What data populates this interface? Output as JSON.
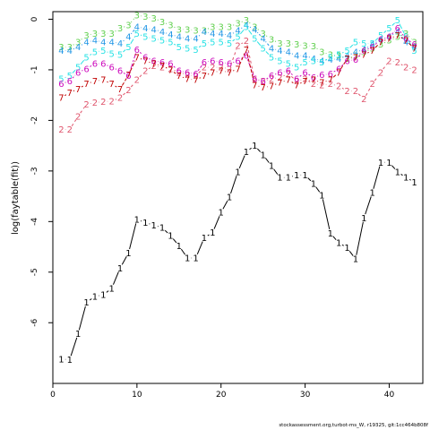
{
  "chart_data": {
    "type": "line",
    "xlabel": "",
    "ylabel": "log(faytable(fit))",
    "xlim": [
      0,
      44
    ],
    "ylim": [
      -7.2,
      0.15
    ],
    "xticks": [
      0,
      10,
      20,
      30,
      40
    ],
    "yticks": [
      0,
      -1,
      -2,
      -3,
      -4,
      -5,
      -6
    ],
    "grid": false,
    "legend": "none",
    "footer": "stockassessment.org,turbot-ms_W, r19325, git:1cc464b808f",
    "x": [
      1,
      2,
      3,
      4,
      5,
      6,
      7,
      8,
      9,
      10,
      11,
      12,
      13,
      14,
      15,
      16,
      17,
      18,
      19,
      20,
      21,
      22,
      23,
      24,
      25,
      26,
      27,
      28,
      29,
      30,
      31,
      32,
      33,
      34,
      35,
      36,
      37,
      38,
      39,
      40,
      41,
      42,
      43
    ],
    "series": [
      {
        "label": "1",
        "color": "#000000",
        "dash": "",
        "values": [
          -6.72,
          -6.73,
          -6.22,
          -5.6,
          -5.48,
          -5.45,
          -5.32,
          -4.92,
          -4.62,
          -3.96,
          -4.02,
          -4.07,
          -4.12,
          -4.28,
          -4.48,
          -4.72,
          -4.72,
          -4.32,
          -4.22,
          -3.82,
          -3.52,
          -3.02,
          -2.62,
          -2.5,
          -2.68,
          -2.9,
          -3.13,
          -3.13,
          -3.08,
          -3.08,
          -3.25,
          -3.48,
          -4.23,
          -4.42,
          -4.52,
          -4.74,
          -3.93,
          -3.43,
          -2.83,
          -2.83,
          -3.02,
          -3.13,
          -3.22
        ]
      },
      {
        "label": "2",
        "color": "#DF536B",
        "dash": "3,3",
        "values": [
          -2.18,
          -2.18,
          -1.92,
          -1.68,
          -1.65,
          -1.63,
          -1.62,
          -1.55,
          -1.4,
          -1.2,
          -1.02,
          -0.92,
          -0.95,
          -0.98,
          -1.05,
          -1.1,
          -1.12,
          -0.95,
          -0.95,
          -0.95,
          -0.98,
          -0.52,
          -0.43,
          -1.2,
          -1.22,
          -1.18,
          -1.15,
          -1.08,
          -1.22,
          -1.18,
          -1.28,
          -1.3,
          -1.28,
          -1.32,
          -1.42,
          -1.42,
          -1.58,
          -1.28,
          -1.05,
          -0.82,
          -0.85,
          -0.95,
          -1.0
        ]
      },
      {
        "label": "3",
        "color": "#61D04F",
        "dash": "1,3",
        "values": [
          -0.55,
          -0.55,
          -0.45,
          -0.32,
          -0.28,
          -0.28,
          -0.28,
          -0.18,
          -0.12,
          0.08,
          0.05,
          0.02,
          -0.05,
          -0.12,
          -0.2,
          -0.2,
          -0.22,
          -0.22,
          -0.15,
          -0.15,
          -0.15,
          -0.08,
          -0.02,
          -0.15,
          -0.28,
          -0.4,
          -0.48,
          -0.48,
          -0.5,
          -0.52,
          -0.53,
          -0.65,
          -0.7,
          -0.72,
          -0.78,
          -0.72,
          -0.65,
          -0.58,
          -0.5,
          -0.42,
          -0.35,
          -0.28,
          -0.45
        ]
      },
      {
        "label": "4",
        "color": "#2297E6",
        "dash": "1,2,3,2",
        "values": [
          -0.62,
          -0.62,
          -0.55,
          -0.45,
          -0.42,
          -0.45,
          -0.45,
          -0.48,
          -0.35,
          -0.15,
          -0.18,
          -0.2,
          -0.25,
          -0.3,
          -0.35,
          -0.38,
          -0.38,
          -0.25,
          -0.28,
          -0.28,
          -0.32,
          -0.22,
          -0.12,
          -0.2,
          -0.38,
          -0.58,
          -0.62,
          -0.65,
          -0.72,
          -0.72,
          -0.78,
          -0.82,
          -0.8,
          -0.78,
          -0.72,
          -0.65,
          -0.6,
          -0.5,
          -0.4,
          -0.35,
          -0.25,
          -0.45,
          -0.55
        ]
      },
      {
        "label": "5",
        "color": "#28E2E5",
        "dash": "6,2",
        "values": [
          -1.18,
          -1.12,
          -0.95,
          -0.75,
          -0.65,
          -0.62,
          -0.68,
          -0.7,
          -0.55,
          -0.28,
          -0.35,
          -0.38,
          -0.42,
          -0.45,
          -0.55,
          -0.58,
          -0.6,
          -0.48,
          -0.45,
          -0.45,
          -0.48,
          -0.35,
          -0.15,
          -0.38,
          -0.58,
          -0.75,
          -0.82,
          -0.88,
          -0.95,
          -0.85,
          -0.82,
          -0.85,
          -0.75,
          -0.7,
          -0.62,
          -0.45,
          -0.48,
          -0.48,
          -0.32,
          -0.18,
          -0.02,
          -0.35,
          -0.62
        ]
      },
      {
        "label": "6",
        "color": "#CD0BBC",
        "dash": "2,2,6,2",
        "values": [
          -1.28,
          -1.22,
          -1.05,
          -0.98,
          -0.88,
          -0.88,
          -0.95,
          -1.02,
          -1.12,
          -0.6,
          -0.75,
          -0.82,
          -0.85,
          -0.88,
          -1.02,
          -1.05,
          -1.08,
          -0.85,
          -0.82,
          -0.85,
          -0.88,
          -0.82,
          -0.72,
          -1.18,
          -1.22,
          -1.12,
          -1.05,
          -1.02,
          -1.18,
          -1.05,
          -1.15,
          -1.1,
          -1.08,
          -0.98,
          -0.82,
          -0.8,
          -0.62,
          -0.55,
          -0.4,
          -0.35,
          -0.18,
          -0.38,
          -0.5
        ]
      },
      {
        "label": "7",
        "color": "#C00000",
        "dash": "4,2",
        "values": [
          -1.55,
          -1.45,
          -1.38,
          -1.28,
          -1.22,
          -1.2,
          -1.28,
          -1.38,
          -1.1,
          -0.75,
          -0.82,
          -0.88,
          -0.92,
          -1.0,
          -1.12,
          -1.18,
          -1.2,
          -1.12,
          -1.05,
          -1.02,
          -1.05,
          -0.98,
          -0.6,
          -1.3,
          -1.35,
          -1.32,
          -1.25,
          -1.2,
          -1.3,
          -1.22,
          -1.2,
          -1.25,
          -1.2,
          -1.05,
          -0.78,
          -0.75,
          -0.7,
          -0.62,
          -0.45,
          -0.38,
          -0.32,
          -0.42,
          -0.58
        ]
      }
    ]
  }
}
